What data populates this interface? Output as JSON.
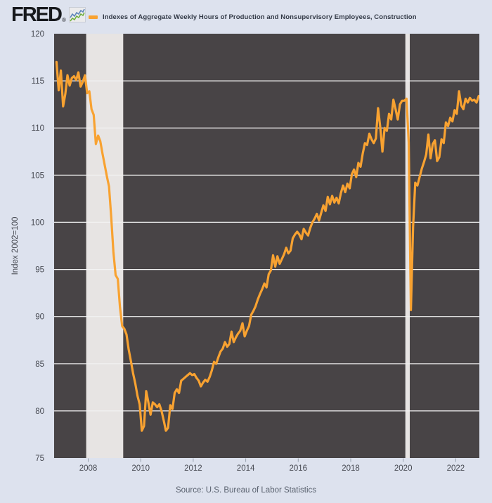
{
  "header": {
    "logo_text": "FRED",
    "logo_registered": "®",
    "legend": {
      "series_label": "Indexes of Aggregate Weekly Hours of Production and Nonsupervisory Employees, Construction"
    }
  },
  "footer": {
    "source": "Source: U.S. Bureau of Labor Statistics"
  },
  "colors": {
    "page_background": "#dde2ee",
    "plot_background": "#484446",
    "recession_band": "#e7e4e3",
    "gridline": "#f2f2f2",
    "line": "#f8a231",
    "axis_text": "#474a52",
    "tick_mark": "#97a1ae",
    "title_text": "#333a47",
    "source_text": "#59616e",
    "logo_text": "#17191d",
    "icon_blue": "#5b83b8",
    "icon_green": "#6faf3e"
  },
  "chart_data": {
    "type": "line",
    "title": "Indexes of Aggregate Weekly Hours of Production and Nonsupervisory Employees, Construction",
    "ylabel": "Index 2002=100",
    "xlabel": "",
    "ylim": [
      75,
      120
    ],
    "xlim": [
      2006.7,
      2022.9
    ],
    "y_ticks": [
      75,
      80,
      85,
      90,
      95,
      100,
      105,
      110,
      115,
      120
    ],
    "x_ticks": [
      2008,
      2010,
      2012,
      2014,
      2016,
      2018,
      2020,
      2022
    ],
    "grid": "horizontal",
    "legend_position": "top-header",
    "recession_bands": [
      {
        "start": 2007.92,
        "end": 2009.33
      },
      {
        "start": 2020.08,
        "end": 2020.25
      }
    ],
    "series": [
      {
        "name": "Indexes of Aggregate Weekly Hours of Production and Nonsupervisory Employees, Construction",
        "color": "#f8a231",
        "start_year": 2006,
        "start_month": 10,
        "frequency": "monthly",
        "values": [
          117.0,
          114.0,
          116.1,
          112.3,
          113.6,
          115.6,
          114.5,
          115.3,
          115.5,
          115.1,
          115.9,
          114.4,
          114.9,
          115.6,
          113.7,
          113.9,
          112.0,
          111.4,
          108.3,
          109.2,
          108.6,
          107.3,
          106.1,
          104.9,
          103.8,
          100.6,
          96.9,
          94.4,
          94.0,
          91.0,
          89.0,
          88.7,
          88.1,
          86.5,
          85.3,
          84.0,
          82.9,
          81.6,
          80.7,
          77.9,
          78.4,
          82.1,
          80.9,
          79.6,
          80.9,
          80.7,
          80.4,
          80.7,
          80.0,
          79.0,
          77.9,
          78.2,
          80.6,
          80.2,
          81.9,
          82.3,
          81.9,
          83.2,
          83.4,
          83.6,
          83.8,
          84.0,
          83.8,
          83.9,
          83.5,
          83.2,
          82.6,
          83.0,
          83.3,
          83.1,
          83.6,
          84.3,
          85.2,
          85.0,
          85.7,
          86.3,
          86.6,
          87.3,
          86.8,
          87.1,
          88.4,
          87.3,
          87.8,
          88.2,
          88.5,
          89.3,
          87.9,
          88.5,
          89.0,
          90.2,
          90.6,
          91.1,
          91.8,
          92.4,
          92.9,
          93.5,
          93.1,
          94.5,
          94.9,
          96.5,
          95.3,
          96.4,
          95.6,
          96.1,
          96.6,
          97.3,
          96.7,
          97.0,
          98.3,
          98.7,
          99.0,
          98.7,
          98.2,
          99.3,
          98.9,
          98.6,
          99.4,
          100.0,
          100.4,
          100.9,
          100.2,
          101.0,
          101.8,
          101.2,
          102.7,
          101.9,
          102.8,
          102.1,
          102.6,
          102.0,
          103.1,
          103.9,
          103.2,
          104.1,
          103.6,
          105.1,
          105.6,
          104.8,
          106.3,
          105.9,
          107.3,
          108.4,
          108.2,
          109.4,
          108.8,
          108.4,
          108.9,
          112.1,
          110.1,
          107.5,
          110.0,
          109.7,
          111.5,
          110.9,
          113.0,
          112.0,
          110.9,
          112.5,
          112.9,
          112.9,
          113.1,
          108.5,
          90.7,
          99.5,
          104.2,
          103.9,
          104.8,
          105.7,
          106.4,
          107.2,
          109.3,
          106.8,
          108.3,
          108.7,
          106.5,
          106.9,
          108.8,
          108.4,
          110.6,
          110.2,
          111.1,
          110.7,
          111.9,
          111.5,
          113.9,
          112.4,
          112.0,
          113.1,
          112.7,
          113.2,
          112.9,
          113.0,
          112.7,
          113.4
        ]
      }
    ]
  }
}
